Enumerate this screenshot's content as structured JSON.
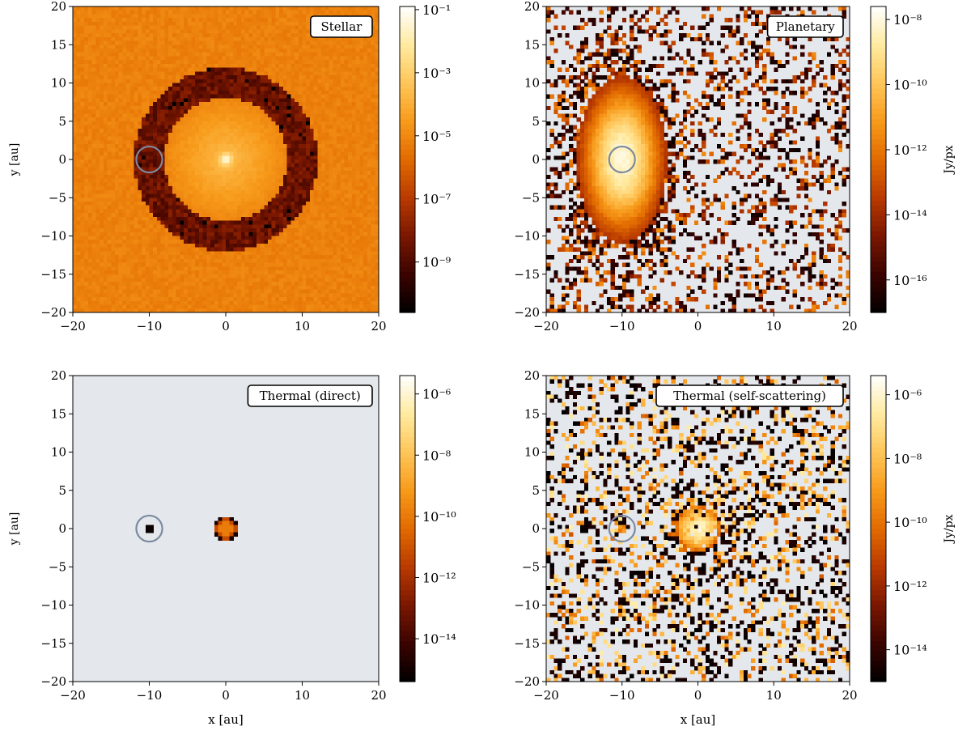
{
  "colors": {
    "background_empty": "#e4e7eb",
    "planet_marker": "#7b8aa0",
    "colormap": [
      "#000000",
      "#3a0300",
      "#7a1700",
      "#b83a00",
      "#e26a00",
      "#f79a1a",
      "#ffc65a",
      "#ffeaa0",
      "#ffffff"
    ]
  },
  "chart_data": [
    {
      "type": "heatmap",
      "id": "stellar",
      "label": "Stellar",
      "xlim": [
        -20,
        20
      ],
      "ylim": [
        -20,
        20
      ],
      "xticks": [
        -20,
        -10,
        0,
        10,
        20
      ],
      "yticks": [
        -20,
        -15,
        -10,
        -5,
        0,
        5,
        10,
        15,
        20
      ],
      "xlabel": "",
      "ylabel": "y [au]",
      "planet_marker": {
        "x": -10,
        "y": 0,
        "radius": 1.7
      },
      "colorbar": {
        "label": "",
        "exp_min": -10.6,
        "exp_max": -0.9,
        "tick_exponents": [
          -1,
          -3,
          -5,
          -7,
          -9
        ]
      },
      "model": "stellar"
    },
    {
      "type": "heatmap",
      "id": "planetary",
      "label": "Planetary",
      "xlim": [
        -20,
        20
      ],
      "ylim": [
        -20,
        20
      ],
      "xticks": [
        -20,
        -10,
        0,
        10,
        20
      ],
      "yticks": [
        -20,
        -15,
        -10,
        -5,
        0,
        5,
        10,
        15,
        20
      ],
      "xlabel": "",
      "ylabel": "",
      "planet_marker": {
        "x": -10,
        "y": 0,
        "radius": 1.7
      },
      "colorbar": {
        "label": "Jy/px",
        "exp_min": -17.0,
        "exp_max": -7.6,
        "tick_exponents": [
          -8,
          -10,
          -12,
          -14,
          -16
        ]
      },
      "model": "planetary"
    },
    {
      "type": "heatmap",
      "id": "thermal-direct",
      "label": "Thermal (direct)",
      "xlim": [
        -20,
        20
      ],
      "ylim": [
        -20,
        20
      ],
      "xticks": [
        -20,
        -10,
        0,
        10,
        20
      ],
      "yticks": [
        -20,
        -15,
        -10,
        -5,
        0,
        5,
        10,
        15,
        20
      ],
      "xlabel": "x [au]",
      "ylabel": "y [au]",
      "planet_marker": {
        "x": -10,
        "y": 0,
        "radius": 1.7
      },
      "colorbar": {
        "label": "",
        "exp_min": -15.4,
        "exp_max": -5.4,
        "tick_exponents": [
          -6,
          -8,
          -10,
          -12,
          -14
        ]
      },
      "model": "thermal_direct"
    },
    {
      "type": "heatmap",
      "id": "thermal-self-scattering",
      "label": "Thermal (self-scattering)",
      "xlim": [
        -20,
        20
      ],
      "ylim": [
        -20,
        20
      ],
      "xticks": [
        -20,
        -10,
        0,
        10,
        20
      ],
      "yticks": [
        -20,
        -15,
        -10,
        -5,
        0,
        5,
        10,
        15,
        20
      ],
      "xlabel": "x [au]",
      "ylabel": "",
      "planet_marker": {
        "x": -10,
        "y": 0,
        "radius": 1.7
      },
      "colorbar": {
        "label": "Jy/px",
        "exp_min": -15.0,
        "exp_max": -5.4,
        "tick_exponents": [
          -6,
          -8,
          -10,
          -12,
          -14
        ]
      },
      "model": "thermal_scatter"
    }
  ]
}
